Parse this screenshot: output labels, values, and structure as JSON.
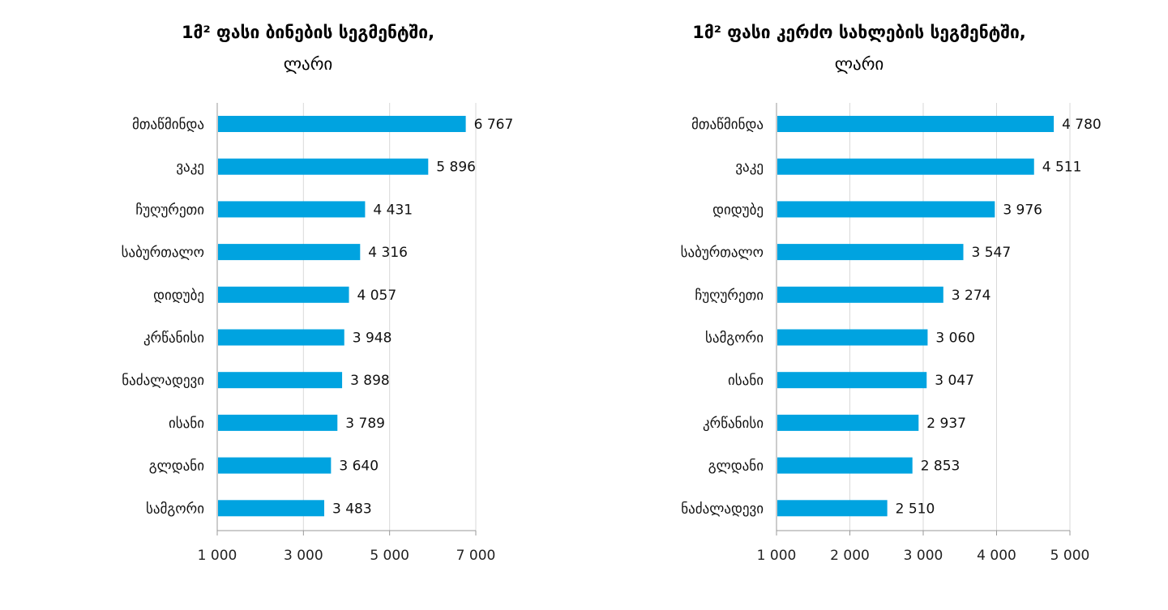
{
  "chart_data": [
    {
      "type": "bar",
      "orientation": "horizontal",
      "title": "1მ² ფასი ბინების სეგმენტში,",
      "subtitle": "ლარი",
      "categories": [
        "მთაწმინდა",
        "ვაკე",
        "ჩუღურეთი",
        "საბურთალო",
        "დიდუბე",
        "კრწანისი",
        "ნაძალადევი",
        "ისანი",
        "გლდანი",
        "სამგორი"
      ],
      "values": [
        6767,
        5896,
        4431,
        4316,
        4057,
        3948,
        3898,
        3789,
        3640,
        3483
      ],
      "value_labels": [
        "6 767",
        "5 896",
        "4 431",
        "4 316",
        "4 057",
        "3 948",
        "3 898",
        "3 789",
        "3 640",
        "3 483"
      ],
      "xlim": [
        1000,
        7000
      ],
      "ticks": [
        1000,
        3000,
        5000,
        7000
      ],
      "tick_labels": [
        "1 000",
        "3 000",
        "5 000",
        "7 000"
      ],
      "grid": true,
      "color": "#00a3e0"
    },
    {
      "type": "bar",
      "orientation": "horizontal",
      "title": "1მ² ფასი კერძო სახლების სეგმენტში,",
      "subtitle": "ლარი",
      "categories": [
        "მთაწმინდა",
        "ვაკე",
        "დიდუბე",
        "საბურთალო",
        "ჩუღურეთი",
        "სამგორი",
        "ისანი",
        "კრწანისი",
        "გლდანი",
        "ნაძალადევი"
      ],
      "values": [
        4780,
        4511,
        3976,
        3547,
        3274,
        3060,
        3047,
        2937,
        2853,
        2510
      ],
      "value_labels": [
        "4 780",
        "4 511",
        "3 976",
        "3 547",
        "3 274",
        "3 060",
        "3 047",
        "2 937",
        "2 853",
        "2 510"
      ],
      "xlim": [
        1000,
        5000
      ],
      "ticks": [
        1000,
        2000,
        3000,
        4000,
        5000
      ],
      "tick_labels": [
        "1 000",
        "2 000",
        "3 000",
        "4 000",
        "5 000"
      ],
      "grid": true,
      "color": "#00a3e0"
    }
  ]
}
